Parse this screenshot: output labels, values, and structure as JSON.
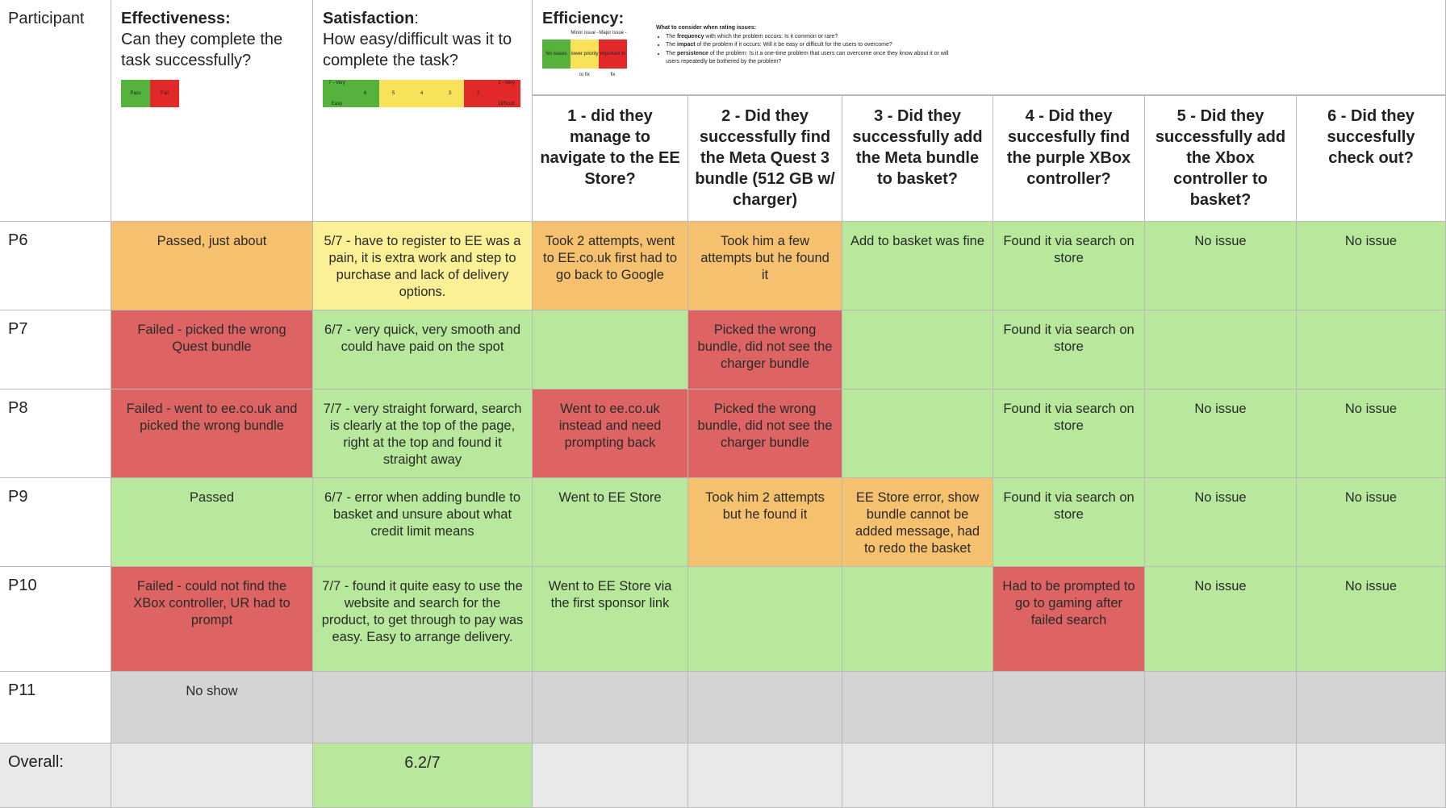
{
  "header": {
    "participant": "Participant",
    "effectiveness_title": "Effectiveness:",
    "effectiveness_sub": "Can they complete the task successfully?",
    "effectiveness_legend": [
      "Pass",
      "Fail"
    ],
    "satisfaction_title": "Satisfaction",
    "satisfaction_colon": ":",
    "satisfaction_sub": "How easy/difficult was it to complete the task?",
    "satisfaction_legend": [
      "7 - Very Easy",
      "6",
      "5",
      "4",
      "3",
      "2",
      "1 - Very Difficult"
    ],
    "efficiency_title": "Efficiency:",
    "efficiency_legend": [
      "No issues",
      "Minor issue - lower priority to fix",
      "Major issue - important to fix"
    ],
    "notes_title": "What to consider when rating issues:",
    "notes": [
      {
        "pre": "The ",
        "bold": "frequency",
        "post": " with which the problem occurs: Is it common or rare?"
      },
      {
        "pre": "The ",
        "bold": "impact",
        "post": " of the problem if it occurs: Will it be easy or difficult for the users to overcome?"
      },
      {
        "pre": "The ",
        "bold": "persistence",
        "post": " of the problem: Is it a one-time problem that users can overcome once they know about it or will users repeatedly be bothered by the problem?"
      }
    ],
    "questions": [
      "1 - did they manage to navigate to the EE Store?",
      "2 - Did they successfully find the Meta Quest 3 bundle (512 GB w/ charger)",
      "3 - Did they successfully add the Meta bundle to basket?",
      "4 - Did they succesfully find the purple XBox controller?",
      "5 - Did they successfully add the Xbox controller to basket?",
      "6 - Did they succesfully check out?"
    ]
  },
  "colors": {
    "green": "#b7e89b",
    "orange": "#f5c16e",
    "red": "#de6464",
    "yellow": "#fbf095",
    "gray": "#d4d4d4",
    "light_gray": "#e9e9e9"
  },
  "rows": [
    {
      "participant": "P6",
      "cells": [
        {
          "text": "Passed, just about",
          "color": "orange"
        },
        {
          "text": "5/7 - have to register to EE was a pain, it is extra work and step to purchase and lack of delivery options.",
          "color": "yellow"
        },
        {
          "text": "Took 2 attempts, went to EE.co.uk first had to go back to Google",
          "color": "orange"
        },
        {
          "text": "Took him a few attempts but he found it",
          "color": "orange"
        },
        {
          "text": "Add to basket was fine",
          "color": "green"
        },
        {
          "text": "Found it via search on store",
          "color": "green"
        },
        {
          "text": "No issue",
          "color": "green"
        },
        {
          "text": "No issue",
          "color": "green"
        }
      ]
    },
    {
      "participant": "P7",
      "cells": [
        {
          "text": "Failed - picked the wrong Quest bundle",
          "color": "red"
        },
        {
          "text": "6/7 - very quick, very smooth and could have paid on the spot",
          "color": "green"
        },
        {
          "text": "",
          "color": "green"
        },
        {
          "text": "Picked the wrong bundle, did not see the charger bundle",
          "color": "red"
        },
        {
          "text": "",
          "color": "green"
        },
        {
          "text": "Found it via search on store",
          "color": "green"
        },
        {
          "text": "",
          "color": "green"
        },
        {
          "text": "",
          "color": "green"
        }
      ]
    },
    {
      "participant": "P8",
      "cells": [
        {
          "text": "Failed - went to ee.co.uk and picked the wrong bundle",
          "color": "red"
        },
        {
          "text": "7/7 - very straight forward, search is clearly at the top of the page, right at the top and found it straight away",
          "color": "green"
        },
        {
          "text": "Went to ee.co.uk instead and need prompting back",
          "color": "red"
        },
        {
          "text": "Picked the wrong bundle, did not see the charger bundle",
          "color": "red"
        },
        {
          "text": "",
          "color": "green"
        },
        {
          "text": "Found it via search on store",
          "color": "green"
        },
        {
          "text": "No issue",
          "color": "green"
        },
        {
          "text": "No issue",
          "color": "green"
        }
      ]
    },
    {
      "participant": "P9",
      "cells": [
        {
          "text": "Passed",
          "color": "green"
        },
        {
          "text": "6/7 - error when adding bundle to basket and unsure about what credit limit means",
          "color": "green"
        },
        {
          "text": "Went to EE Store",
          "color": "green"
        },
        {
          "text": "Took him 2 attempts but he found it",
          "color": "orange"
        },
        {
          "text": "EE Store error, show bundle cannot be added message, had to redo the basket",
          "color": "orange"
        },
        {
          "text": "Found it via search on store",
          "color": "green"
        },
        {
          "text": "No issue",
          "color": "green"
        },
        {
          "text": "No issue",
          "color": "green"
        }
      ]
    },
    {
      "participant": "P10",
      "cells": [
        {
          "text": "Failed - could not find the XBox controller, UR had to prompt",
          "color": "red"
        },
        {
          "text": "7/7 - found it quite easy to use the website and search for the product, to get through to pay was easy. Easy to arrange delivery.",
          "color": "green"
        },
        {
          "text": "Went to EE Store via the first sponsor link",
          "color": "green"
        },
        {
          "text": "",
          "color": "green"
        },
        {
          "text": "",
          "color": "green"
        },
        {
          "text": "Had to be prompted to go to gaming after failed search",
          "color": "red"
        },
        {
          "text": "No issue",
          "color": "green"
        },
        {
          "text": "No issue",
          "color": "green"
        }
      ]
    },
    {
      "participant": "P11",
      "cells": [
        {
          "text": "No show",
          "color": "gray"
        },
        {
          "text": "",
          "color": "gray"
        },
        {
          "text": "",
          "color": "gray"
        },
        {
          "text": "",
          "color": "gray"
        },
        {
          "text": "",
          "color": "gray"
        },
        {
          "text": "",
          "color": "gray"
        },
        {
          "text": "",
          "color": "gray"
        },
        {
          "text": "",
          "color": "gray"
        }
      ]
    }
  ],
  "overall": {
    "label": "Overall:",
    "satisfaction": "6.2/7"
  }
}
